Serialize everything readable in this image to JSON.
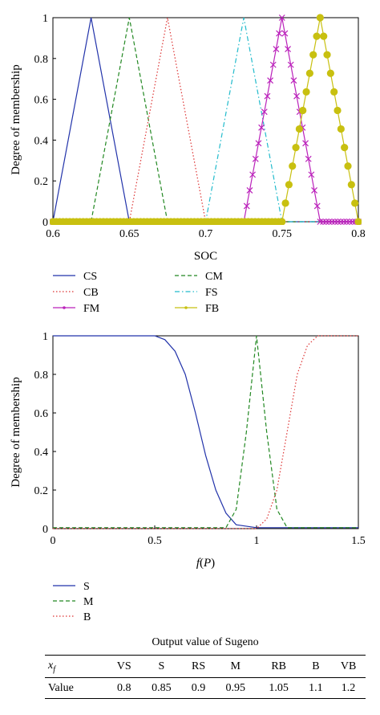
{
  "chart_data": [
    {
      "type": "line",
      "xlabel": "SOC",
      "ylabel": "Degree of membership",
      "xlim": [
        0.6,
        0.8
      ],
      "ylim": [
        0,
        1
      ],
      "xticks": [
        "0.6",
        "0.65",
        "0.7",
        "0.75",
        "0.8"
      ],
      "yticks": [
        "0",
        "0.2",
        "0.4",
        "0.6",
        "0.8",
        "1"
      ],
      "grid": false,
      "legend": "below, two columns",
      "series": [
        {
          "name": "CS",
          "color": "#2233aa",
          "style": "solid",
          "x": [
            0.6,
            0.625,
            0.65,
            0.8
          ],
          "y": [
            0,
            1,
            0,
            0
          ]
        },
        {
          "name": "CM",
          "color": "#228822",
          "style": "dashed",
          "x": [
            0.6,
            0.625,
            0.65,
            0.675,
            0.8
          ],
          "y": [
            0,
            0,
            1,
            0,
            0
          ]
        },
        {
          "name": "CB",
          "color": "#dd3333",
          "style": "dotted",
          "x": [
            0.6,
            0.65,
            0.675,
            0.7,
            0.8
          ],
          "y": [
            0,
            0,
            1,
            0,
            0
          ]
        },
        {
          "name": "FS",
          "color": "#22bbcc",
          "style": "dashdot",
          "x": [
            0.6,
            0.7,
            0.725,
            0.75,
            0.8
          ],
          "y": [
            0,
            0,
            1,
            0,
            0
          ]
        },
        {
          "name": "FM",
          "color": "#bb22bb",
          "style": "x-marker",
          "x": [
            0.6,
            0.725,
            0.75,
            0.775,
            0.8
          ],
          "y": [
            0,
            0,
            1,
            0,
            0
          ]
        },
        {
          "name": "FB",
          "color": "#c8c010",
          "style": "dot-marker",
          "x": [
            0.6,
            0.75,
            0.775,
            0.8
          ],
          "y": [
            0,
            0,
            1,
            0
          ]
        }
      ]
    },
    {
      "type": "line",
      "xlabel": "f(P)",
      "ylabel": "Degree of membership",
      "xlim": [
        0,
        1.5
      ],
      "ylim": [
        0,
        1
      ],
      "xticks": [
        "0",
        "0.5",
        "1",
        "1.5"
      ],
      "yticks": [
        "0",
        "0.2",
        "0.4",
        "0.6",
        "0.8",
        "1"
      ],
      "grid": false,
      "legend": "below, one column",
      "series": [
        {
          "name": "S",
          "color": "#2233aa",
          "style": "solid",
          "x": [
            0,
            0.5,
            0.55,
            0.6,
            0.65,
            0.7,
            0.75,
            0.8,
            0.85,
            0.9,
            1.0,
            1.5
          ],
          "y": [
            1,
            1,
            0.98,
            0.92,
            0.8,
            0.6,
            0.38,
            0.2,
            0.08,
            0.02,
            0.005,
            0.005
          ]
        },
        {
          "name": "M",
          "color": "#228822",
          "style": "dashed",
          "x": [
            0,
            0.85,
            0.9,
            0.95,
            1.0,
            1.05,
            1.1,
            1.15,
            1.5
          ],
          "y": [
            0.005,
            0.005,
            0.1,
            0.5,
            1,
            0.5,
            0.1,
            0.005,
            0.005
          ]
        },
        {
          "name": "B",
          "color": "#dd3333",
          "style": "dotted",
          "x": [
            0,
            1.0,
            1.05,
            1.1,
            1.15,
            1.2,
            1.25,
            1.3,
            1.5
          ],
          "y": [
            0,
            0,
            0.05,
            0.2,
            0.5,
            0.8,
            0.95,
            1,
            1
          ]
        }
      ]
    }
  ],
  "sugeno": {
    "title": "Output value of Sugeno",
    "header": [
      "x",
      "VS",
      "S",
      "RS",
      "M",
      "RB",
      "B",
      "VB"
    ],
    "header_sub": "f",
    "row": [
      "Value",
      "0.8",
      "0.85",
      "0.9",
      "0.95",
      "1.05",
      "1.1",
      "1.2"
    ]
  }
}
